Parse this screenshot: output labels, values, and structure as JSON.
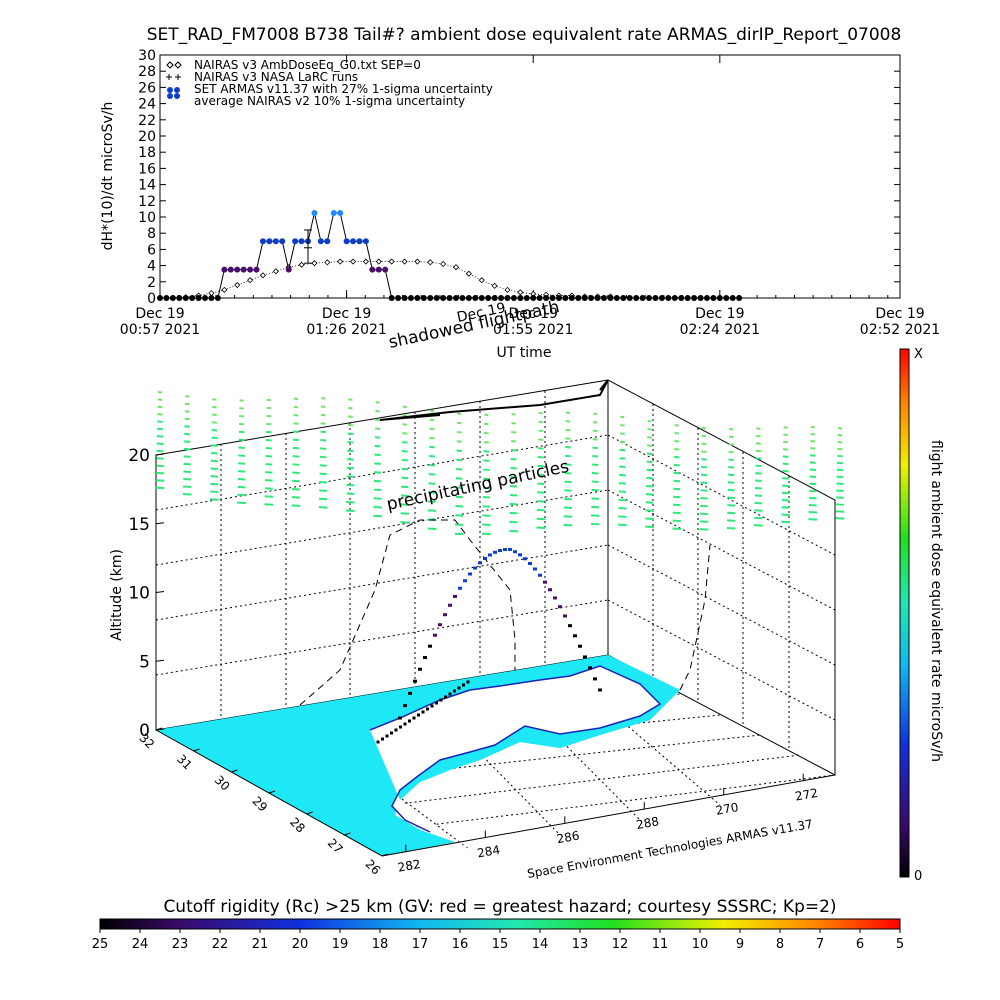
{
  "title": "SET_RAD_FM7008  B738 Tail#? ambient dose equivalent rate ARMAS_dirIP_Report_07008",
  "colors": {
    "nairas_v3": "#000000",
    "armas_low": "#4b0f6b",
    "armas_high": "#0c3ec9",
    "armas_peak": "#1e8cff",
    "ocean": "#1ee8f5",
    "land": "#ffffff",
    "coast": "#1a22b8",
    "particles": "#2ee87a",
    "particles_upper": "#6ee66a"
  },
  "chart_data": [
    {
      "type": "line",
      "x_unit": "minutes after Dec 19 00:57 2021 UT",
      "ylabel": "dH*(10)/dt microSv/h",
      "xlabel": "UT time",
      "ylim": [
        0,
        30
      ],
      "xlim": [
        0,
        115
      ],
      "yticks": [
        "0",
        "2",
        "4",
        "6",
        "8",
        "10",
        "12",
        "14",
        "16",
        "18",
        "20",
        "22",
        "24",
        "26",
        "28",
        "30"
      ],
      "xticks": [
        {
          "value": 0,
          "line1": "Dec 19",
          "line2": "00:57 2021"
        },
        {
          "value": 29,
          "line1": "Dec 19",
          "line2": "01:26 2021"
        },
        {
          "value": 58,
          "line1": "Dec 19",
          "line2": "01:55 2021"
        },
        {
          "value": 87,
          "line1": "Dec 19",
          "line2": "02:24 2021"
        },
        {
          "value": 115,
          "line1": "Dec 19",
          "line2": "02:52 2021"
        }
      ],
      "legend_position": "top-left",
      "legend": [
        "NAIRAS v3 AmbDoseEq_G0.txt SEP=0",
        "NAIRAS v3 NASA LaRC runs",
        "SET ARMAS v11.37 with 27% 1-sigma uncertainty",
        "average NAIRAS v2 10% 1-sigma uncertainty"
      ],
      "nairas_v3": {
        "x": [
          4,
          6,
          8,
          10,
          12,
          14,
          16,
          18,
          20,
          22,
          24,
          26,
          28,
          30,
          32,
          34,
          36,
          38,
          40,
          42,
          44,
          46,
          48,
          50,
          52,
          54,
          56,
          58,
          60,
          62,
          64,
          66,
          68,
          70
        ],
        "y": [
          0.1,
          0.3,
          0.6,
          1.0,
          1.6,
          2.2,
          2.8,
          3.3,
          3.8,
          4.1,
          4.3,
          4.4,
          4.5,
          4.5,
          4.5,
          4.5,
          4.5,
          4.5,
          4.5,
          4.4,
          4.2,
          3.8,
          3.0,
          2.2,
          1.5,
          1.0,
          0.7,
          0.5,
          0.4,
          0.3,
          0.3,
          0.2,
          0.2,
          0.2
        ]
      },
      "armas": {
        "x": [
          0,
          1,
          2,
          3,
          4,
          5,
          6,
          7,
          8,
          9,
          10,
          11,
          12,
          13,
          14,
          15,
          16,
          17,
          18,
          19,
          20,
          21,
          22,
          23,
          24,
          25,
          26,
          27,
          28,
          29,
          30,
          31,
          32,
          33,
          34,
          35,
          36,
          37,
          38,
          39,
          40,
          41,
          42,
          43,
          44,
          45,
          46,
          47,
          48,
          49,
          50,
          51,
          52,
          53,
          54,
          55,
          56,
          57,
          58,
          59,
          60,
          61,
          62,
          63,
          64,
          65,
          66,
          67,
          68,
          69,
          70,
          71,
          72,
          73,
          74,
          75,
          76,
          77,
          78,
          79,
          80,
          81,
          82,
          83,
          84,
          85,
          86,
          87,
          88,
          89,
          90
        ],
        "y": [
          0,
          0,
          0,
          0,
          0,
          0,
          0,
          0,
          0,
          0,
          3.5,
          3.5,
          3.5,
          3.5,
          3.5,
          3.5,
          7,
          7,
          7,
          7,
          3.5,
          7,
          7,
          7,
          10.5,
          7,
          7,
          10.5,
          10.5,
          7,
          7,
          7,
          7,
          3.5,
          3.5,
          3.5,
          0,
          0,
          0,
          0,
          0,
          0,
          0,
          0,
          0,
          0,
          0,
          0,
          0,
          0,
          0,
          0,
          0,
          0,
          0,
          0,
          0,
          0,
          0,
          0,
          0,
          0,
          0,
          0,
          0,
          0,
          0,
          0,
          0,
          0,
          0,
          0,
          0,
          0,
          0,
          0,
          0,
          0,
          0,
          0,
          0,
          0,
          0,
          0,
          0,
          0,
          0,
          0,
          0,
          0,
          0
        ]
      },
      "error_bar": {
        "x": 23,
        "y": 6.2,
        "low": 4.3,
        "high": 8.4
      }
    },
    {
      "type": "scatter",
      "zlabel": "Altitude (km)",
      "zticks": [
        "0",
        "5",
        "10",
        "15",
        "20"
      ],
      "lat_ticks": [
        "32",
        "31",
        "30",
        "29",
        "28",
        "27",
        "26"
      ],
      "lon_ticks": [
        "282",
        "284",
        "286",
        "288",
        "270",
        "272"
      ],
      "colorbar_label": "flight ambient dose equivalent rate microSv/h",
      "colorbar_top": "X",
      "colorbar_bottom": "0",
      "annotations": [
        "shadowed flightpath",
        "precipitating particles"
      ],
      "credit": "Space Environment Technologies ARMAS v11.37",
      "dec_label": "Dec 19"
    },
    {
      "type": "heatmap",
      "label": "Cutoff rigidity (Rc) >25 km (GV: red = greatest hazard; courtesy SSSRC; Kp=2)",
      "ticks": [
        "25",
        "24",
        "23",
        "22",
        "21",
        "20",
        "19",
        "18",
        "17",
        "16",
        "15",
        "14",
        "13",
        "12",
        "11",
        "10",
        "9",
        "8",
        "7",
        "6",
        "5"
      ]
    }
  ]
}
